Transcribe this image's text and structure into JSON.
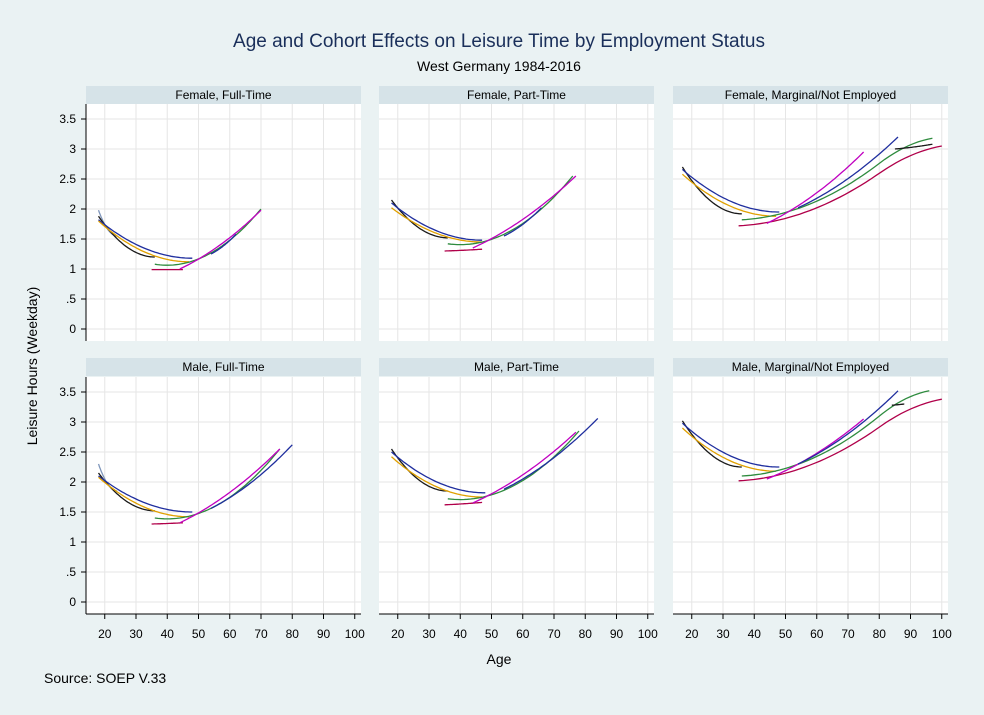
{
  "chart_data": {
    "type": "line",
    "title": "Age and Cohort Effects on Leisure Time by Employment Status",
    "subtitle": "West Germany 1984-2016",
    "xlabel": "Age",
    "ylabel": "Leisure Hours (Weekday)",
    "note": "Source: SOEP V.33",
    "xlim": [
      14,
      102
    ],
    "ylim": [
      -0.2,
      3.75
    ],
    "x_ticks": [
      20,
      30,
      40,
      50,
      60,
      70,
      80,
      90,
      100
    ],
    "x_tick_labels": [
      "20",
      "30",
      "40",
      "50",
      "60",
      "70",
      "80",
      "90",
      "100"
    ],
    "y_ticks": [
      0,
      0.5,
      1,
      1.5,
      2,
      2.5,
      3,
      3.5
    ],
    "y_tick_labels": [
      "0",
      ".5",
      "1",
      "1.5",
      "2",
      "2.5",
      "3",
      "3.5"
    ],
    "grid": true,
    "legend": "none",
    "cohort_colors": [
      "#7f96bb",
      "#1a1a1a",
      "#1f2e9e",
      "#e0a000",
      "#2e8b3e",
      "#b0004a",
      "#c000c0"
    ],
    "panels": [
      {
        "label": "Female, Full-Time",
        "series": [
          {
            "color": "#7f96bb",
            "x": [
              18,
              24
            ],
            "y": [
              1.98,
              1.55
            ]
          },
          {
            "color": "#1a1a1a",
            "x": [
              18,
              36
            ],
            "y": [
              1.88,
              1.2
            ]
          },
          {
            "color": "#1f2e9e",
            "x": [
              18,
              48
            ],
            "y": [
              1.82,
              1.18
            ]
          },
          {
            "color": "#e0a000",
            "x": [
              18,
              47
            ],
            "y": [
              1.8,
              1.12
            ]
          },
          {
            "color": "#2e8b3e",
            "x": [
              36,
              70
            ],
            "y": [
              1.08,
              2.0
            ]
          },
          {
            "color": "#b0004a",
            "x": [
              35,
              45
            ],
            "y": [
              0.99,
              0.99
            ]
          },
          {
            "color": "#c000c0",
            "x": [
              44,
              70
            ],
            "y": [
              1.0,
              1.98
            ]
          },
          {
            "color": "#1f2e9e",
            "x": [
              54,
              62
            ],
            "y": [
              1.25,
              1.58
            ]
          }
        ]
      },
      {
        "label": "Female, Part-Time",
        "series": [
          {
            "color": "#1a1a1a",
            "x": [
              18,
              36
            ],
            "y": [
              2.15,
              1.52
            ]
          },
          {
            "color": "#1f2e9e",
            "x": [
              18,
              47
            ],
            "y": [
              2.1,
              1.48
            ]
          },
          {
            "color": "#e0a000",
            "x": [
              18,
              47
            ],
            "y": [
              2.02,
              1.45
            ]
          },
          {
            "color": "#2e8b3e",
            "x": [
              36,
              76
            ],
            "y": [
              1.42,
              2.55
            ]
          },
          {
            "color": "#b0004a",
            "x": [
              35,
              47
            ],
            "y": [
              1.3,
              1.33
            ]
          },
          {
            "color": "#c000c0",
            "x": [
              44,
              77
            ],
            "y": [
              1.35,
              2.55
            ]
          },
          {
            "color": "#1f2e9e",
            "x": [
              54,
              66
            ],
            "y": [
              1.55,
              2.02
            ]
          }
        ]
      },
      {
        "label": "Female, Marginal/Not Employed",
        "series": [
          {
            "color": "#1a1a1a",
            "x": [
              17,
              36
            ],
            "y": [
              2.7,
              1.92
            ]
          },
          {
            "color": "#1f2e9e",
            "x": [
              17,
              48
            ],
            "y": [
              2.66,
              1.95
            ]
          },
          {
            "color": "#e0a000",
            "x": [
              17,
              47
            ],
            "y": [
              2.58,
              1.88
            ]
          },
          {
            "color": "#2e8b3e",
            "x": [
              36,
              97
            ],
            "y": [
              1.82,
              3.18
            ]
          },
          {
            "color": "#b0004a",
            "x": [
              35,
              100
            ],
            "y": [
              1.72,
              3.05
            ]
          },
          {
            "color": "#c000c0",
            "x": [
              44,
              75
            ],
            "y": [
              1.76,
              2.95
            ]
          },
          {
            "color": "#1f2e9e",
            "x": [
              54,
              86
            ],
            "y": [
              2.02,
              3.2
            ]
          },
          {
            "color": "#1a1a1a",
            "x": [
              85,
              97
            ],
            "y": [
              3.0,
              3.08
            ]
          }
        ]
      },
      {
        "label": "Male, Full-Time",
        "series": [
          {
            "color": "#7f96bb",
            "x": [
              18,
              24
            ],
            "y": [
              2.3,
              1.85
            ]
          },
          {
            "color": "#1a1a1a",
            "x": [
              18,
              36
            ],
            "y": [
              2.15,
              1.52
            ]
          },
          {
            "color": "#1f2e9e",
            "x": [
              18,
              48
            ],
            "y": [
              2.1,
              1.5
            ]
          },
          {
            "color": "#e0a000",
            "x": [
              18,
              47
            ],
            "y": [
              2.08,
              1.42
            ]
          },
          {
            "color": "#2e8b3e",
            "x": [
              36,
              76
            ],
            "y": [
              1.4,
              2.55
            ]
          },
          {
            "color": "#b0004a",
            "x": [
              35,
              45
            ],
            "y": [
              1.3,
              1.32
            ]
          },
          {
            "color": "#c000c0",
            "x": [
              44,
              76
            ],
            "y": [
              1.32,
              2.55
            ]
          },
          {
            "color": "#1f2e9e",
            "x": [
              54,
              80
            ],
            "y": [
              1.56,
              2.62
            ]
          }
        ]
      },
      {
        "label": "Male, Part-Time",
        "series": [
          {
            "color": "#1a1a1a",
            "x": [
              18,
              36
            ],
            "y": [
              2.55,
              1.85
            ]
          },
          {
            "color": "#1f2e9e",
            "x": [
              18,
              48
            ],
            "y": [
              2.5,
              1.82
            ]
          },
          {
            "color": "#e0a000",
            "x": [
              18,
              47
            ],
            "y": [
              2.42,
              1.75
            ]
          },
          {
            "color": "#2e8b3e",
            "x": [
              36,
              78
            ],
            "y": [
              1.72,
              2.85
            ]
          },
          {
            "color": "#b0004a",
            "x": [
              35,
              47
            ],
            "y": [
              1.62,
              1.66
            ]
          },
          {
            "color": "#c000c0",
            "x": [
              44,
              77
            ],
            "y": [
              1.65,
              2.83
            ]
          },
          {
            "color": "#1f2e9e",
            "x": [
              54,
              84
            ],
            "y": [
              1.88,
              3.06
            ]
          }
        ]
      },
      {
        "label": "Male, Marginal/Not Employed",
        "series": [
          {
            "color": "#1a1a1a",
            "x": [
              17,
              36
            ],
            "y": [
              3.02,
              2.25
            ]
          },
          {
            "color": "#1f2e9e",
            "x": [
              17,
              48
            ],
            "y": [
              2.98,
              2.25
            ]
          },
          {
            "color": "#e0a000",
            "x": [
              17,
              47
            ],
            "y": [
              2.9,
              2.18
            ]
          },
          {
            "color": "#2e8b3e",
            "x": [
              36,
              96
            ],
            "y": [
              2.1,
              3.52
            ]
          },
          {
            "color": "#b0004a",
            "x": [
              35,
              100
            ],
            "y": [
              2.02,
              3.38
            ]
          },
          {
            "color": "#c000c0",
            "x": [
              44,
              75
            ],
            "y": [
              2.05,
              3.05
            ]
          },
          {
            "color": "#1f2e9e",
            "x": [
              54,
              86
            ],
            "y": [
              2.3,
              3.52
            ]
          },
          {
            "color": "#1a1a1a",
            "x": [
              84,
              88
            ],
            "y": [
              3.28,
              3.3
            ]
          }
        ]
      }
    ]
  }
}
